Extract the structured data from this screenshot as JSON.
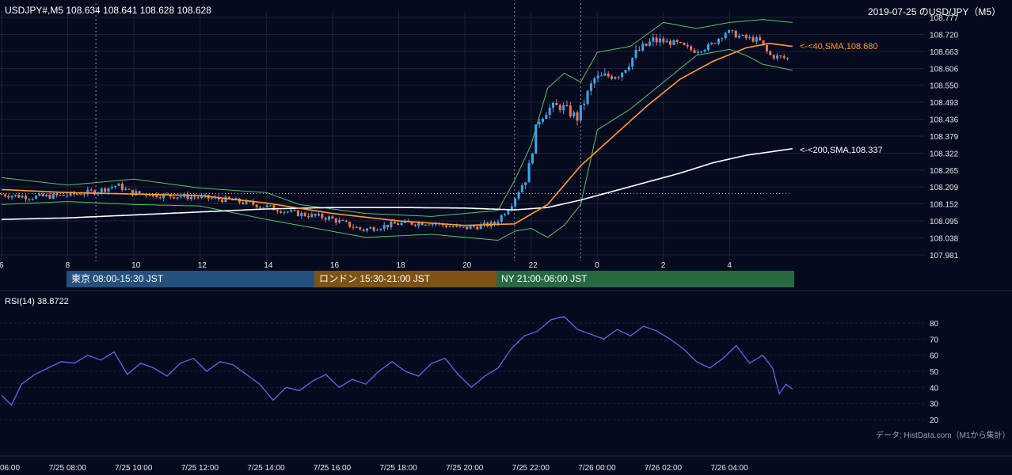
{
  "header": {
    "symbol_info": "USDJPY#,M5 108.634 108.641 108.628 108.628",
    "title": "2019-07-25 のUSD/JPY（M5）"
  },
  "sessions": [
    {
      "label": "東京 08:00-15:30 JST",
      "color": "#24507e"
    },
    {
      "label": "ロンドン 15:30-21:00 JST",
      "color": "#7e5314"
    },
    {
      "label": "NY 21:00-06:00 JST",
      "color": "#276a41"
    }
  ],
  "rsi_panel": {
    "label": "RSI(14) 38.8722"
  },
  "source_note": "データ: HistData.com（M1から集計）",
  "colors": {
    "background": "#060a1e",
    "bull_candle": "#3fa6e6",
    "bear_candle": "#e8785e",
    "sma40": "#ffa030",
    "sma200": "#ffffff",
    "bollinger": "#55c36a",
    "rsi": "#5a6cf0"
  },
  "chart_data": [
    {
      "type": "candlestick",
      "timeframe": "M5",
      "y_ticks": [
        "108.777",
        "108.720",
        "108.663",
        "108.606",
        "108.550",
        "108.493",
        "108.436",
        "108.379",
        "108.322",
        "108.265",
        "108.209",
        "108.152",
        "108.095",
        "108.038",
        "107.981"
      ],
      "ylim": [
        107.981,
        108.777
      ],
      "x_ticks": [
        "6",
        "8",
        "10",
        "12",
        "14",
        "16",
        "18",
        "20",
        "22",
        "0",
        "2",
        "4"
      ],
      "price_path": [
        [
          6.0,
          108.185
        ],
        [
          7.0,
          108.175
        ],
        [
          8.0,
          108.18
        ],
        [
          9.0,
          108.195
        ],
        [
          9.6,
          108.215
        ],
        [
          10.0,
          108.19
        ],
        [
          11.0,
          108.18
        ],
        [
          12.0,
          108.175
        ],
        [
          13.0,
          108.165
        ],
        [
          14.0,
          108.145
        ],
        [
          15.0,
          108.12
        ],
        [
          16.0,
          108.105
        ],
        [
          17.0,
          108.065
        ],
        [
          18.0,
          108.085
        ],
        [
          19.0,
          108.09
        ],
        [
          20.0,
          108.07
        ],
        [
          21.0,
          108.085
        ],
        [
          21.5,
          108.15
        ],
        [
          22.0,
          108.25
        ],
        [
          22.3,
          108.43
        ],
        [
          22.6,
          108.47
        ],
        [
          23.0,
          108.48
        ],
        [
          23.5,
          108.44
        ],
        [
          24.0,
          108.57
        ],
        [
          24.8,
          108.59
        ],
        [
          25.3,
          108.66
        ],
        [
          25.8,
          108.7
        ],
        [
          26.5,
          108.69
        ],
        [
          27.0,
          108.665
        ],
        [
          27.5,
          108.68
        ],
        [
          28.0,
          108.73
        ],
        [
          28.5,
          108.71
        ],
        [
          29.0,
          108.7
        ],
        [
          29.3,
          108.65
        ],
        [
          29.8,
          108.64
        ]
      ],
      "sma40": {
        "label": "<-<40,SMA,108.680",
        "points": [
          [
            6.0,
            108.2
          ],
          [
            8.0,
            108.19
          ],
          [
            10.0,
            108.185
          ],
          [
            12.0,
            108.18
          ],
          [
            14.0,
            108.155
          ],
          [
            16.0,
            108.12
          ],
          [
            18.0,
            108.095
          ],
          [
            20.0,
            108.08
          ],
          [
            21.5,
            108.085
          ],
          [
            22.5,
            108.15
          ],
          [
            23.5,
            108.28
          ],
          [
            24.5,
            108.38
          ],
          [
            25.5,
            108.48
          ],
          [
            26.5,
            108.57
          ],
          [
            27.5,
            108.63
          ],
          [
            28.5,
            108.675
          ],
          [
            29.2,
            108.69
          ],
          [
            29.9,
            108.68
          ]
        ]
      },
      "sma200": {
        "label": "<-<200,SMA,108.337",
        "points": [
          [
            6.0,
            108.1
          ],
          [
            8.0,
            108.105
          ],
          [
            10.0,
            108.115
          ],
          [
            12.0,
            108.125
          ],
          [
            14.0,
            108.135
          ],
          [
            16.0,
            108.14
          ],
          [
            18.0,
            108.14
          ],
          [
            20.0,
            108.138
          ],
          [
            21.5,
            108.132
          ],
          [
            22.5,
            108.14
          ],
          [
            23.5,
            108.165
          ],
          [
            24.5,
            108.195
          ],
          [
            25.5,
            108.225
          ],
          [
            26.5,
            108.255
          ],
          [
            27.5,
            108.29
          ],
          [
            28.5,
            108.315
          ],
          [
            29.9,
            108.337
          ]
        ]
      },
      "bollinger": {
        "upper": [
          [
            6.0,
            108.24
          ],
          [
            8.0,
            108.215
          ],
          [
            10.0,
            108.235
          ],
          [
            12.0,
            108.205
          ],
          [
            14.0,
            108.19
          ],
          [
            15.0,
            108.15
          ],
          [
            17.0,
            108.12
          ],
          [
            19.0,
            108.11
          ],
          [
            21.0,
            108.13
          ],
          [
            21.5,
            108.23
          ],
          [
            22.0,
            108.35
          ],
          [
            22.5,
            108.54
          ],
          [
            23.0,
            108.59
          ],
          [
            23.5,
            108.56
          ],
          [
            24.0,
            108.66
          ],
          [
            25.0,
            108.68
          ],
          [
            26.0,
            108.76
          ],
          [
            27.0,
            108.74
          ],
          [
            28.0,
            108.76
          ],
          [
            29.0,
            108.77
          ],
          [
            29.9,
            108.76
          ]
        ],
        "lower": [
          [
            6.0,
            108.15
          ],
          [
            8.0,
            108.16
          ],
          [
            10.0,
            108.15
          ],
          [
            12.0,
            108.145
          ],
          [
            14.0,
            108.1
          ],
          [
            15.0,
            108.08
          ],
          [
            17.0,
            108.04
          ],
          [
            19.0,
            108.05
          ],
          [
            21.0,
            108.03
          ],
          [
            21.5,
            108.06
          ],
          [
            22.0,
            108.07
          ],
          [
            22.5,
            108.04
          ],
          [
            23.0,
            108.08
          ],
          [
            23.5,
            108.15
          ],
          [
            24.0,
            108.4
          ],
          [
            25.0,
            108.47
          ],
          [
            26.0,
            108.56
          ],
          [
            27.0,
            108.65
          ],
          [
            28.0,
            108.67
          ],
          [
            28.5,
            108.65
          ],
          [
            29.0,
            108.62
          ],
          [
            29.9,
            108.6
          ]
        ]
      },
      "horizontal_line": 108.187
    },
    {
      "type": "line",
      "name": "RSI(14)",
      "y_ticks": [
        80,
        70,
        60,
        50,
        40,
        30,
        20
      ],
      "ylim": [
        20,
        80
      ],
      "x_tick_labels": [
        "06:00",
        "7/25 08:00",
        "7/25 10:00",
        "7/25 12:00",
        "7/25 14:00",
        "7/25 16:00",
        "7/25 18:00",
        "7/25 20:00",
        "7/25 22:00",
        "7/26 00:00",
        "7/26 02:00",
        "7/26 04:00"
      ],
      "points": [
        [
          6.0,
          35
        ],
        [
          6.3,
          29
        ],
        [
          6.6,
          42
        ],
        [
          7.0,
          48
        ],
        [
          7.4,
          52
        ],
        [
          7.8,
          56
        ],
        [
          8.2,
          55
        ],
        [
          8.6,
          60
        ],
        [
          9.0,
          57
        ],
        [
          9.4,
          62
        ],
        [
          9.8,
          48
        ],
        [
          10.2,
          55
        ],
        [
          10.6,
          52
        ],
        [
          11.0,
          47
        ],
        [
          11.4,
          55
        ],
        [
          11.8,
          58
        ],
        [
          12.2,
          50
        ],
        [
          12.6,
          56
        ],
        [
          13.0,
          54
        ],
        [
          13.4,
          48
        ],
        [
          13.8,
          42
        ],
        [
          14.2,
          32
        ],
        [
          14.6,
          40
        ],
        [
          15.0,
          38
        ],
        [
          15.4,
          44
        ],
        [
          15.8,
          48
        ],
        [
          16.2,
          40
        ],
        [
          16.6,
          45
        ],
        [
          17.0,
          42
        ],
        [
          17.4,
          50
        ],
        [
          17.8,
          56
        ],
        [
          18.2,
          50
        ],
        [
          18.6,
          47
        ],
        [
          19.0,
          55
        ],
        [
          19.4,
          58
        ],
        [
          19.8,
          48
        ],
        [
          20.2,
          40
        ],
        [
          20.6,
          47
        ],
        [
          21.0,
          52
        ],
        [
          21.4,
          64
        ],
        [
          21.8,
          72
        ],
        [
          22.2,
          75
        ],
        [
          22.6,
          82
        ],
        [
          23.0,
          84
        ],
        [
          23.4,
          76
        ],
        [
          23.8,
          73
        ],
        [
          24.2,
          70
        ],
        [
          24.6,
          76
        ],
        [
          25.0,
          72
        ],
        [
          25.4,
          78
        ],
        [
          25.8,
          75
        ],
        [
          26.2,
          70
        ],
        [
          26.6,
          64
        ],
        [
          27.0,
          56
        ],
        [
          27.4,
          52
        ],
        [
          27.8,
          58
        ],
        [
          28.2,
          66
        ],
        [
          28.6,
          55
        ],
        [
          29.0,
          60
        ],
        [
          29.3,
          52
        ],
        [
          29.5,
          36
        ],
        [
          29.7,
          42
        ],
        [
          29.9,
          39
        ]
      ]
    }
  ]
}
